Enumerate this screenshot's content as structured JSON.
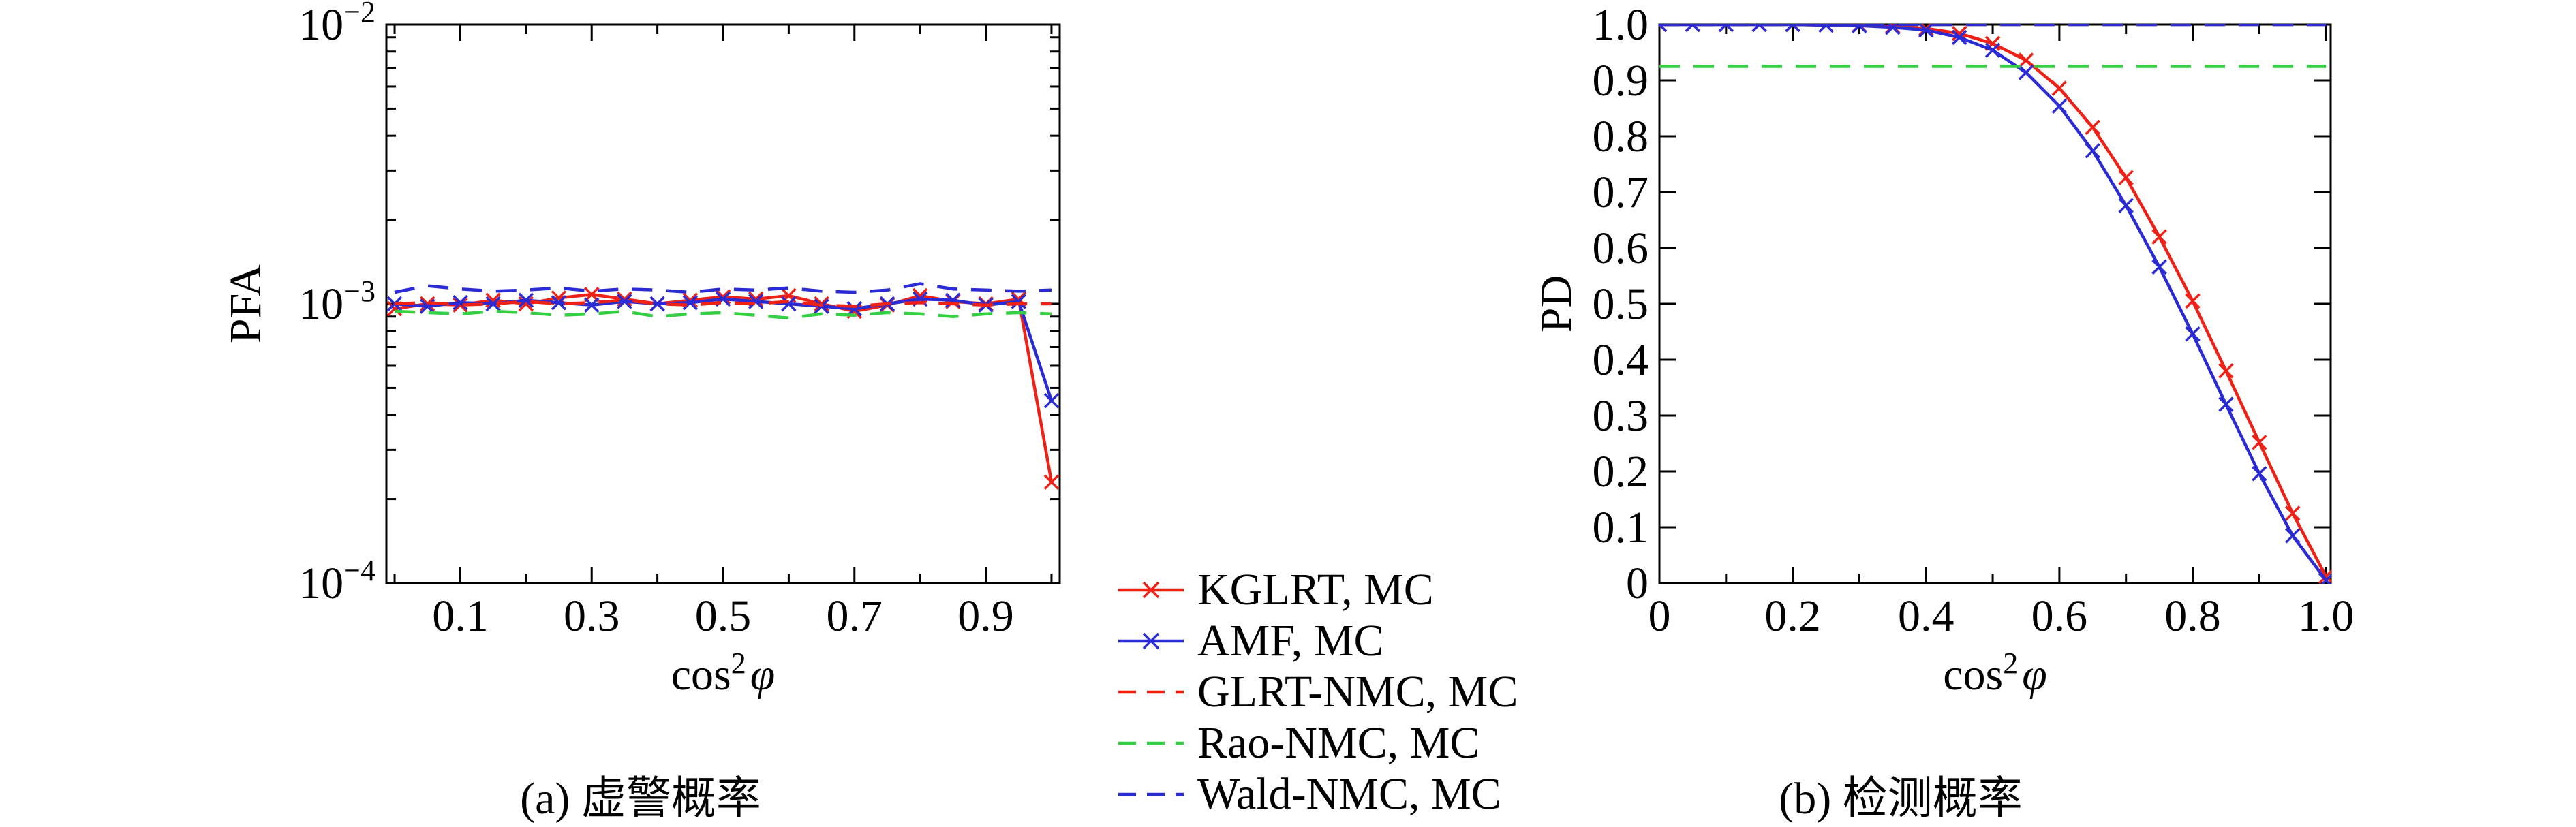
{
  "colors": {
    "red": "#ee2116",
    "blue": "#2b2bd5",
    "green": "#35cf44",
    "axis": "#000000"
  },
  "captions": {
    "left": "(a) 虚警概率",
    "right": "(b) 检测概率"
  },
  "legend": {
    "items": [
      {
        "label": "KGLRT, MC",
        "color": "red",
        "style": "solid",
        "marker": "x"
      },
      {
        "label": "AMF, MC",
        "color": "blue",
        "style": "solid",
        "marker": "x"
      },
      {
        "label": "GLRT-NMC, MC",
        "color": "red",
        "style": "dashed",
        "marker": null
      },
      {
        "label": "Rao-NMC, MC",
        "color": "green",
        "style": "dashed",
        "marker": null
      },
      {
        "label": "Wald-NMC, MC",
        "color": "blue",
        "style": "dashed",
        "marker": null
      }
    ]
  },
  "chart_data": [
    {
      "type": "line",
      "title": "(a) 虚警概率",
      "xlabel": "cos²φ",
      "xlabel_parts": {
        "fn": "cos",
        "exp": "2",
        "var": "φ"
      },
      "ylabel": "PFA",
      "x_scale": "linear",
      "y_scale": "log",
      "xlim": [
        -0.0125,
        1.0125
      ],
      "ylim": [
        0.0001,
        0.01
      ],
      "x_major_ticks": [
        0.1,
        0.3,
        0.5,
        0.7,
        0.9
      ],
      "x_major_labels": [
        "0.1",
        "0.3",
        "0.5",
        "0.7",
        "0.9"
      ],
      "x_minor_ticks": [
        0,
        0.2,
        0.4,
        0.6,
        0.8,
        1.0
      ],
      "y_major_ticks": [
        0.0001,
        0.001,
        0.01
      ],
      "y_major_exponents": [
        "−4",
        "−3",
        "−2"
      ],
      "grid": false,
      "x": [
        0,
        0.05,
        0.1,
        0.15,
        0.2,
        0.25,
        0.3,
        0.35,
        0.4,
        0.45,
        0.5,
        0.55,
        0.6,
        0.65,
        0.7,
        0.75,
        0.8,
        0.85,
        0.9,
        0.95,
        1
      ],
      "series": [
        {
          "name": "KGLRT, MC",
          "color": "red",
          "style": "solid",
          "marker": "x",
          "values": [
            0.00096,
            0.001,
            0.00099,
            0.00103,
            0.001,
            0.00105,
            0.00108,
            0.00104,
            0.001,
            0.00103,
            0.00106,
            0.00104,
            0.00107,
            0.001,
            0.00094,
            0.00099,
            0.00107,
            0.00102,
            0.001,
            0.00104,
            0.00023
          ]
        },
        {
          "name": "AMF, MC",
          "color": "blue",
          "style": "solid",
          "marker": "x",
          "values": [
            0.001,
            0.00098,
            0.00101,
            0.001,
            0.00103,
            0.00101,
            0.00099,
            0.00102,
            0.001,
            0.00101,
            0.00104,
            0.00102,
            0.001,
            0.00098,
            0.00096,
            0.001,
            0.00104,
            0.00103,
            0.00099,
            0.00102,
            0.00045
          ]
        },
        {
          "name": "GLRT-NMC, MC",
          "color": "red",
          "style": "dashed",
          "marker": null,
          "values": [
            0.001,
            0.00101,
            0.00099,
            0.001,
            0.00102,
            0.001,
            0.00101,
            0.00103,
            0.001,
            0.00099,
            0.00101,
            0.001,
            0.00102,
            0.00099,
            0.00098,
            0.001,
            0.00101,
            0.001,
            0.00099,
            0.001,
            0.001
          ]
        },
        {
          "name": "Rao-NMC, MC",
          "color": "green",
          "style": "dashed",
          "marker": null,
          "values": [
            0.00094,
            0.00093,
            0.00092,
            0.00094,
            0.00093,
            0.00091,
            0.00092,
            0.00094,
            0.0009,
            0.00092,
            0.00093,
            0.00091,
            0.00089,
            0.00092,
            0.00091,
            0.00093,
            0.00092,
            0.0009,
            0.00092,
            0.00093,
            0.00092
          ]
        },
        {
          "name": "Wald-NMC, MC",
          "color": "blue",
          "style": "dashed",
          "marker": null,
          "values": [
            0.0011,
            0.00116,
            0.00113,
            0.00111,
            0.00112,
            0.00114,
            0.00111,
            0.00113,
            0.00112,
            0.0011,
            0.00113,
            0.00112,
            0.00114,
            0.00111,
            0.0011,
            0.00112,
            0.00118,
            0.00113,
            0.00112,
            0.00111,
            0.00112
          ]
        }
      ]
    },
    {
      "type": "line",
      "title": "(b) 检测概率",
      "xlabel": "cos²φ",
      "xlabel_parts": {
        "fn": "cos",
        "exp": "2",
        "var": "φ"
      },
      "ylabel": "PD",
      "x_scale": "linear",
      "y_scale": "linear",
      "xlim": [
        0,
        1.007
      ],
      "ylim": [
        0,
        1
      ],
      "x_major_ticks": [
        0,
        0.2,
        0.4,
        0.6,
        0.8,
        1.0
      ],
      "x_major_labels": [
        "0",
        "0.2",
        "0.4",
        "0.6",
        "0.8",
        "1.0"
      ],
      "x_minor_ticks": [
        0.1,
        0.3,
        0.5,
        0.7,
        0.9
      ],
      "y_major_ticks": [
        0,
        0.1,
        0.2,
        0.3,
        0.4,
        0.5,
        0.6,
        0.7,
        0.8,
        0.9,
        1.0
      ],
      "y_major_labels": [
        "0",
        "0.1",
        "0.2",
        "0.3",
        "0.4",
        "0.5",
        "0.6",
        "0.7",
        "0.8",
        "0.9",
        "1.0"
      ],
      "grid": false,
      "x": [
        0,
        0.05,
        0.1,
        0.15,
        0.2,
        0.25,
        0.3,
        0.35,
        0.4,
        0.45,
        0.5,
        0.55,
        0.6,
        0.65,
        0.7,
        0.75,
        0.8,
        0.85,
        0.9,
        0.95,
        1
      ],
      "series": [
        {
          "name": "KGLRT, MC",
          "color": "red",
          "style": "solid",
          "marker": "x",
          "values": [
            1,
            1,
            1,
            1,
            1,
            0.999,
            0.999,
            0.997,
            0.993,
            0.984,
            0.966,
            0.936,
            0.886,
            0.816,
            0.726,
            0.62,
            0.505,
            0.38,
            0.252,
            0.125,
            0.012
          ]
        },
        {
          "name": "AMF, MC",
          "color": "blue",
          "style": "solid",
          "marker": "x",
          "values": [
            1,
            1,
            1,
            1,
            1,
            0.999,
            0.998,
            0.995,
            0.99,
            0.977,
            0.954,
            0.914,
            0.854,
            0.774,
            0.676,
            0.566,
            0.446,
            0.32,
            0.196,
            0.085,
            0.005
          ]
        },
        {
          "name": "GLRT-NMC, MC",
          "color": "red",
          "style": "dashed",
          "marker": null,
          "constant": 1.0
        },
        {
          "name": "Rao-NMC, MC",
          "color": "green",
          "style": "dashed",
          "marker": null,
          "constant": 0.925
        },
        {
          "name": "Wald-NMC, MC",
          "color": "blue",
          "style": "dashed",
          "marker": null,
          "constant": 1.0
        }
      ]
    }
  ]
}
